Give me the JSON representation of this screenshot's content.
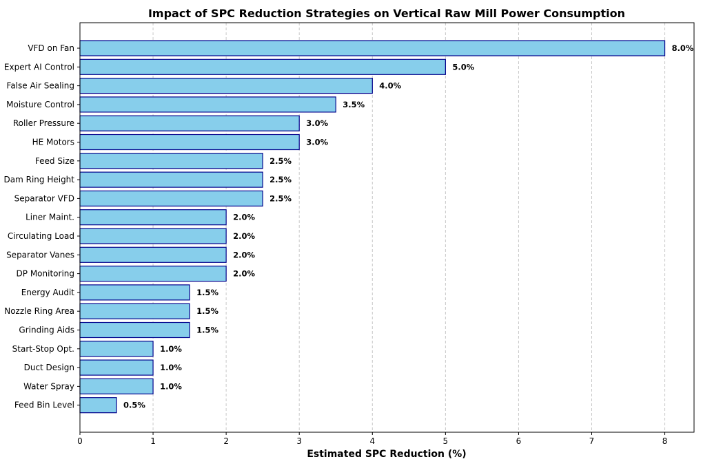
{
  "chart_data": {
    "type": "bar",
    "orientation": "horizontal",
    "title": "Impact of SPC Reduction Strategies on Vertical Raw Mill Power Consumption",
    "xlabel": "Estimated SPC Reduction (%)",
    "ylabel": "",
    "xlim": [
      0,
      8.4
    ],
    "xticks": [
      0,
      1,
      2,
      3,
      4,
      5,
      6,
      7,
      8
    ],
    "grid": "x-dashed",
    "bar_color": "#87CEEB",
    "bar_edge_color": "#00008B",
    "categories": [
      "VFD on Fan",
      "Expert AI Control",
      "False Air Sealing",
      "Moisture Control",
      "Roller Pressure",
      "HE Motors",
      "Feed Size",
      "Dam Ring Height",
      "Separator VFD",
      "Liner Maint.",
      "Circulating Load",
      "Separator Vanes",
      "DP Monitoring",
      "Energy Audit",
      "Nozzle Ring Area",
      "Grinding Aids",
      "Start-Stop Opt.",
      "Duct Design",
      "Water Spray",
      "Feed Bin Level"
    ],
    "values": [
      8.0,
      5.0,
      4.0,
      3.5,
      3.0,
      3.0,
      2.5,
      2.5,
      2.5,
      2.0,
      2.0,
      2.0,
      2.0,
      1.5,
      1.5,
      1.5,
      1.0,
      1.0,
      1.0,
      0.5
    ],
    "value_labels": [
      "8.0%",
      "5.0%",
      "4.0%",
      "3.5%",
      "3.0%",
      "3.0%",
      "2.5%",
      "2.5%",
      "2.5%",
      "2.0%",
      "2.0%",
      "2.0%",
      "2.0%",
      "1.5%",
      "1.5%",
      "1.5%",
      "1.0%",
      "1.0%",
      "1.0%",
      "0.5%"
    ]
  }
}
